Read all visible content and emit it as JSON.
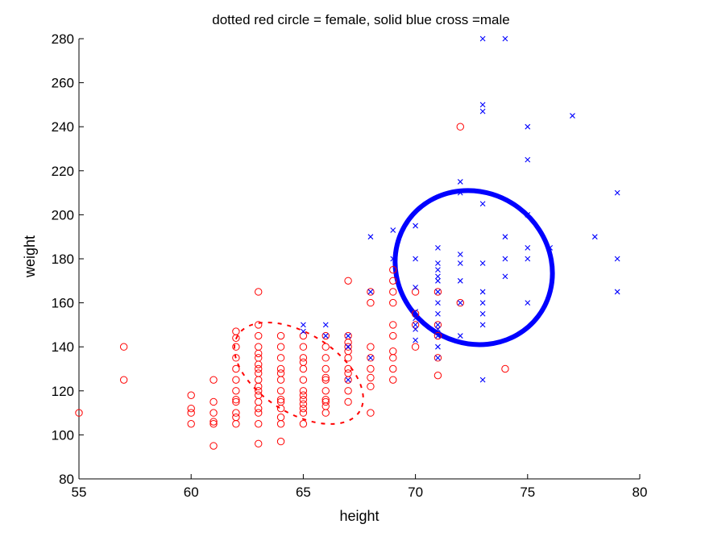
{
  "chart_data": {
    "type": "scatter",
    "title": "dotted red circle = female, solid blue cross =male",
    "xlabel": "height",
    "ylabel": "weight",
    "xlim": [
      55,
      80
    ],
    "ylim": [
      80,
      280
    ],
    "xticks": [
      55,
      60,
      65,
      70,
      75,
      80
    ],
    "yticks": [
      80,
      100,
      120,
      140,
      160,
      180,
      200,
      220,
      240,
      260,
      280
    ],
    "grid": false,
    "series": [
      {
        "marker": "circle",
        "color": "#ff0000",
        "points": [
          [
            55,
            110
          ],
          [
            57,
            140
          ],
          [
            57,
            125
          ],
          [
            60,
            118
          ],
          [
            60,
            112
          ],
          [
            60,
            110
          ],
          [
            60,
            105
          ],
          [
            61,
            125
          ],
          [
            61,
            115
          ],
          [
            61,
            110
          ],
          [
            61,
            106
          ],
          [
            61,
            105
          ],
          [
            61,
            95
          ],
          [
            62,
            147
          ],
          [
            62,
            144
          ],
          [
            62,
            140
          ],
          [
            62,
            135
          ],
          [
            62,
            130
          ],
          [
            62,
            125
          ],
          [
            62,
            120
          ],
          [
            62,
            116
          ],
          [
            62,
            115
          ],
          [
            62,
            110
          ],
          [
            62,
            108
          ],
          [
            62,
            105
          ],
          [
            63,
            165
          ],
          [
            63,
            150
          ],
          [
            63,
            145
          ],
          [
            63,
            140
          ],
          [
            63,
            137
          ],
          [
            63,
            135
          ],
          [
            63,
            132
          ],
          [
            63,
            130
          ],
          [
            63,
            128
          ],
          [
            63,
            125
          ],
          [
            63,
            122
          ],
          [
            63,
            120
          ],
          [
            63,
            118
          ],
          [
            63,
            115
          ],
          [
            63,
            112
          ],
          [
            63,
            110
          ],
          [
            63,
            105
          ],
          [
            63,
            96
          ],
          [
            64,
            145
          ],
          [
            64,
            140
          ],
          [
            64,
            135
          ],
          [
            64,
            130
          ],
          [
            64,
            128
          ],
          [
            64,
            125
          ],
          [
            64,
            120
          ],
          [
            64,
            116
          ],
          [
            64,
            115
          ],
          [
            64,
            112
          ],
          [
            64,
            108
          ],
          [
            64,
            105
          ],
          [
            64,
            97
          ],
          [
            65,
            145
          ],
          [
            65,
            140
          ],
          [
            65,
            135
          ],
          [
            65,
            133
          ],
          [
            65,
            130
          ],
          [
            65,
            125
          ],
          [
            65,
            120
          ],
          [
            65,
            118
          ],
          [
            65,
            116
          ],
          [
            65,
            114
          ],
          [
            65,
            112
          ],
          [
            65,
            110
          ],
          [
            65,
            105
          ],
          [
            66,
            145
          ],
          [
            66,
            140
          ],
          [
            66,
            135
          ],
          [
            66,
            130
          ],
          [
            66,
            126
          ],
          [
            66,
            125
          ],
          [
            66,
            120
          ],
          [
            66,
            116
          ],
          [
            66,
            115
          ],
          [
            66,
            113
          ],
          [
            66,
            110
          ],
          [
            67,
            170
          ],
          [
            67,
            145
          ],
          [
            67,
            142
          ],
          [
            67,
            140
          ],
          [
            67,
            138
          ],
          [
            67,
            135
          ],
          [
            67,
            130
          ],
          [
            67,
            128
          ],
          [
            67,
            125
          ],
          [
            67,
            120
          ],
          [
            67,
            115
          ],
          [
            68,
            165
          ],
          [
            68,
            160
          ],
          [
            68,
            140
          ],
          [
            68,
            135
          ],
          [
            68,
            130
          ],
          [
            68,
            126
          ],
          [
            68,
            122
          ],
          [
            68,
            110
          ],
          [
            69,
            175
          ],
          [
            69,
            170
          ],
          [
            69,
            165
          ],
          [
            69,
            160
          ],
          [
            69,
            150
          ],
          [
            69,
            145
          ],
          [
            69,
            138
          ],
          [
            69,
            135
          ],
          [
            69,
            130
          ],
          [
            69,
            125
          ],
          [
            70,
            165
          ],
          [
            70,
            155
          ],
          [
            70,
            150
          ],
          [
            70,
            140
          ],
          [
            71,
            165
          ],
          [
            71,
            150
          ],
          [
            71,
            145
          ],
          [
            71,
            135
          ],
          [
            71,
            127
          ],
          [
            72,
            240
          ],
          [
            72,
            160
          ],
          [
            74,
            130
          ]
        ]
      },
      {
        "marker": "cross",
        "color": "#0000ff",
        "points": [
          [
            65,
            150
          ],
          [
            65,
            147
          ],
          [
            66,
            150
          ],
          [
            66,
            145
          ],
          [
            67,
            145
          ],
          [
            67,
            140
          ],
          [
            67,
            125
          ],
          [
            68,
            165
          ],
          [
            68,
            135
          ],
          [
            68,
            190
          ],
          [
            69,
            193
          ],
          [
            69,
            180
          ],
          [
            70,
            195
          ],
          [
            70,
            180
          ],
          [
            70,
            167
          ],
          [
            70,
            156
          ],
          [
            70,
            153
          ],
          [
            70,
            150
          ],
          [
            70,
            148
          ],
          [
            70,
            143
          ],
          [
            71,
            185
          ],
          [
            71,
            178
          ],
          [
            71,
            175
          ],
          [
            71,
            172
          ],
          [
            71,
            170
          ],
          [
            71,
            165
          ],
          [
            71,
            160
          ],
          [
            71,
            155
          ],
          [
            71,
            150
          ],
          [
            71,
            148
          ],
          [
            71,
            145
          ],
          [
            71,
            140
          ],
          [
            71,
            135
          ],
          [
            72,
            215
          ],
          [
            72,
            210
          ],
          [
            72,
            182
          ],
          [
            72,
            178
          ],
          [
            72,
            170
          ],
          [
            72,
            160
          ],
          [
            72,
            145
          ],
          [
            73,
            280
          ],
          [
            73,
            250
          ],
          [
            73,
            247
          ],
          [
            73,
            205
          ],
          [
            73,
            178
          ],
          [
            73,
            165
          ],
          [
            73,
            160
          ],
          [
            73,
            155
          ],
          [
            73,
            150
          ],
          [
            73,
            125
          ],
          [
            74,
            280
          ],
          [
            74,
            190
          ],
          [
            74,
            180
          ],
          [
            74,
            172
          ],
          [
            75,
            240
          ],
          [
            75,
            225
          ],
          [
            75,
            200
          ],
          [
            75,
            185
          ],
          [
            75,
            180
          ],
          [
            75,
            160
          ],
          [
            76,
            185
          ],
          [
            77,
            245
          ],
          [
            78,
            190
          ],
          [
            79,
            210
          ],
          [
            79,
            180
          ],
          [
            79,
            165
          ]
        ]
      }
    ],
    "ellipses": [
      {
        "style": "dotted",
        "color": "#ff0000",
        "center": [
          64.8,
          128
        ],
        "rx": 3.2,
        "ry": 18,
        "angle_deg": 32,
        "width": 2
      },
      {
        "style": "solid",
        "color": "#0000ff",
        "center": [
          72.6,
          176
        ],
        "rx": 3.6,
        "ry": 34,
        "angle_deg": 37,
        "width": 6
      }
    ]
  }
}
